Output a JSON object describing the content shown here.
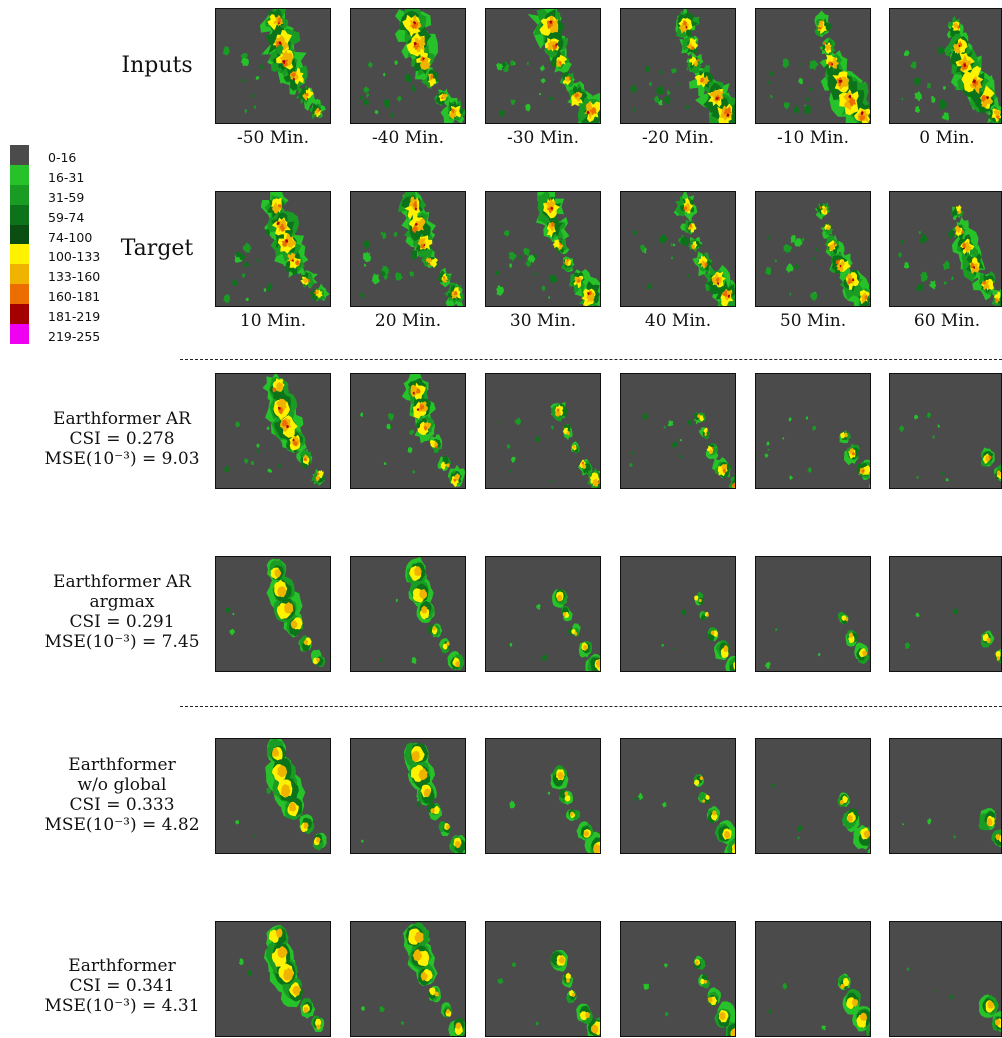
{
  "legend": [
    {
      "label": "0-16",
      "color": "#4b4b4b"
    },
    {
      "label": "16-31",
      "color": "#27c22a"
    },
    {
      "label": "31-59",
      "color": "#1a9b24"
    },
    {
      "label": "59-74",
      "color": "#0d731a"
    },
    {
      "label": "74-100",
      "color": "#0a4e12"
    },
    {
      "label": "100-133",
      "color": "#fff200"
    },
    {
      "label": "133-160",
      "color": "#f0b400"
    },
    {
      "label": "160-181",
      "color": "#ec6d00"
    },
    {
      "label": "181-219",
      "color": "#a50000"
    },
    {
      "label": "219-255",
      "color": "#f000f0"
    }
  ],
  "rows": [
    {
      "id": "inputs",
      "label_lines": [
        "Inputs"
      ],
      "big": true,
      "captions": [
        "-50 Min.",
        "-40 Min.",
        "-30 Min.",
        "-20 Min.",
        "-10 Min.",
        "0 Min."
      ],
      "style": "noisy",
      "intensity": [
        1.0,
        1.0,
        1.05,
        1.05,
        1.1,
        1.1
      ]
    },
    {
      "id": "target",
      "label_lines": [
        "Target"
      ],
      "big": true,
      "captions": [
        "10 Min.",
        "20 Min.",
        "30 Min.",
        "40 Min.",
        "50 Min.",
        "60 Min."
      ],
      "style": "noisy",
      "intensity": [
        0.95,
        0.9,
        0.85,
        0.8,
        0.75,
        0.75
      ]
    },
    {
      "id": "earthformer-ar",
      "label_lines": [
        "Earthformer AR",
        "CSI = 0.278",
        "MSE(10⁻³) = 9.03"
      ],
      "big": false,
      "captions": [],
      "style": "blotchy",
      "intensity": [
        0.95,
        0.8,
        0.65,
        0.6,
        0.5,
        0.45
      ]
    },
    {
      "id": "earthformer-ar-argmax",
      "label_lines": [
        "Earthformer AR",
        "argmax",
        "CSI = 0.291",
        "MSE(10⁻³) = 7.45"
      ],
      "big": false,
      "captions": [],
      "style": "smooth",
      "intensity": [
        0.85,
        0.75,
        0.65,
        0.55,
        0.45,
        0.4
      ]
    },
    {
      "id": "earthformer-wo-global",
      "label_lines": [
        "Earthformer",
        "w/o global",
        "CSI = 0.333",
        "MSE(10⁻³) = 4.82"
      ],
      "big": false,
      "captions": [],
      "style": "smooth",
      "intensity": [
        0.95,
        0.85,
        0.75,
        0.65,
        0.6,
        0.55
      ]
    },
    {
      "id": "earthformer",
      "label_lines": [
        "Earthformer",
        "CSI = 0.341",
        "MSE(10⁻³) = 4.31"
      ],
      "big": false,
      "captions": [],
      "style": "smooth",
      "intensity": [
        0.95,
        0.85,
        0.75,
        0.7,
        0.65,
        0.6
      ]
    }
  ]
}
